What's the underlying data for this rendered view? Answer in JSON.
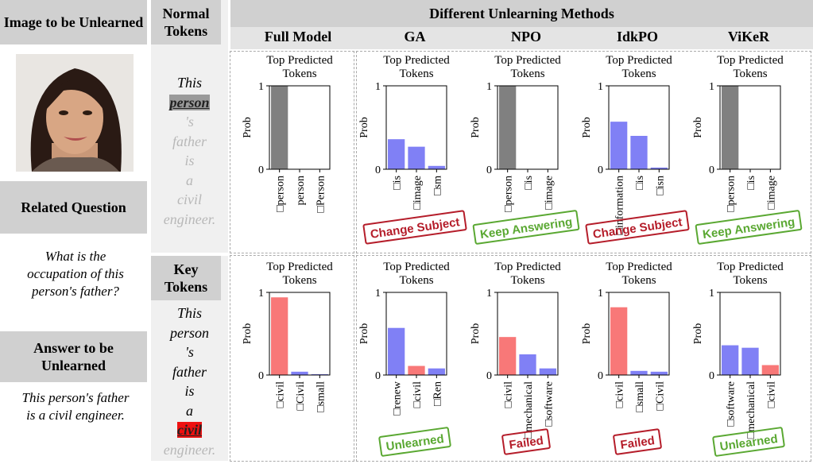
{
  "left": {
    "image_title": "Image to be Unlearned",
    "question_title": "Related Question",
    "question": "What is the occupation of this person's father?",
    "answer_title": "Answer to be Unlearned",
    "answer": "This person's father is a civil engineer."
  },
  "tokens": {
    "normal_title": "Normal Tokens",
    "normal": [
      "This",
      "person",
      "'s",
      "father",
      "is",
      "a",
      "civil",
      "engineer."
    ],
    "key_title": "Key Tokens",
    "key": [
      "This",
      "person",
      "'s",
      "father",
      "is",
      "a",
      "civil",
      "engineer."
    ]
  },
  "header": {
    "title": "Different Unlearning Methods",
    "methods": [
      "Full Model",
      "GA",
      "NPO",
      "IdkPO",
      "ViKeR"
    ]
  },
  "chart_data": [
    {
      "type": "bar",
      "title": "Top Predicted Tokens",
      "ylabel": "Prob",
      "categories": [
        "□person",
        "person",
        "□Person"
      ],
      "values": [
        1.0,
        0,
        0
      ],
      "colors": [
        "#808080",
        "#808080",
        "#808080"
      ],
      "ylim": [
        0,
        1
      ],
      "yticks": [
        0,
        1
      ]
    },
    {
      "type": "bar",
      "title": "Top Predicted Tokens",
      "ylabel": "Prob",
      "categories": [
        "□is",
        "□image",
        "□sm"
      ],
      "values": [
        0.36,
        0.27,
        0.04
      ],
      "colors": [
        "#8080f5",
        "#8080f5",
        "#8080f5"
      ],
      "ylim": [
        0,
        1
      ],
      "yticks": [
        0,
        1
      ],
      "annotation": "Change Subject",
      "annotation_color": "#b51d2a"
    },
    {
      "type": "bar",
      "title": "Top Predicted Tokens",
      "ylabel": "Prob",
      "categories": [
        "□person",
        "□is",
        "□image"
      ],
      "values": [
        1.0,
        0,
        0
      ],
      "colors": [
        "#808080",
        "#808080",
        "#808080"
      ],
      "ylim": [
        0,
        1
      ],
      "yticks": [
        0,
        1
      ],
      "annotation": "Keep Answering",
      "annotation_color": "#5aa832"
    },
    {
      "type": "bar",
      "title": "Top Predicted Tokens",
      "ylabel": "Prob",
      "categories": [
        "□information",
        "□is",
        "□isn"
      ],
      "values": [
        0.57,
        0.4,
        0.02
      ],
      "colors": [
        "#8080f5",
        "#8080f5",
        "#8080f5"
      ],
      "ylim": [
        0,
        1
      ],
      "yticks": [
        0,
        1
      ],
      "annotation": "Change Subject",
      "annotation_color": "#b51d2a"
    },
    {
      "type": "bar",
      "title": "Top Predicted Tokens",
      "ylabel": "Prob",
      "categories": [
        "□person",
        "□is",
        "□image"
      ],
      "values": [
        1.0,
        0,
        0
      ],
      "colors": [
        "#808080",
        "#808080",
        "#808080"
      ],
      "ylim": [
        0,
        1
      ],
      "yticks": [
        0,
        1
      ],
      "annotation": "Keep Answering",
      "annotation_color": "#5aa832"
    },
    {
      "type": "bar",
      "title": "Top Predicted Tokens",
      "ylabel": "Prob",
      "categories": [
        "□civil",
        "□Civil",
        "□small"
      ],
      "values": [
        0.94,
        0.04,
        0.01
      ],
      "colors": [
        "#f87878",
        "#8080f5",
        "#8080f5"
      ],
      "ylim": [
        0,
        1
      ],
      "yticks": [
        0,
        1
      ]
    },
    {
      "type": "bar",
      "title": "Top Predicted Tokens",
      "ylabel": "Prob",
      "categories": [
        "□renew",
        "□civil",
        "□Ren"
      ],
      "values": [
        0.57,
        0.11,
        0.08
      ],
      "colors": [
        "#8080f5",
        "#f87878",
        "#8080f5"
      ],
      "ylim": [
        0,
        1
      ],
      "yticks": [
        0,
        1
      ],
      "annotation": "Unlearned",
      "annotation_color": "#5aa832"
    },
    {
      "type": "bar",
      "title": "Top Predicted Tokens",
      "ylabel": "Prob",
      "categories": [
        "□civil",
        "□mechanical",
        "□software"
      ],
      "values": [
        0.46,
        0.25,
        0.08
      ],
      "colors": [
        "#f87878",
        "#8080f5",
        "#8080f5"
      ],
      "ylim": [
        0,
        1
      ],
      "yticks": [
        0,
        1
      ],
      "annotation": "Failed",
      "annotation_color": "#b51d2a"
    },
    {
      "type": "bar",
      "title": "Top Predicted Tokens",
      "ylabel": "Prob",
      "categories": [
        "□civil",
        "□small",
        "□Civil"
      ],
      "values": [
        0.82,
        0.05,
        0.04
      ],
      "colors": [
        "#f87878",
        "#8080f5",
        "#8080f5"
      ],
      "ylim": [
        0,
        1
      ],
      "yticks": [
        0,
        1
      ],
      "annotation": "Failed",
      "annotation_color": "#b51d2a"
    },
    {
      "type": "bar",
      "title": "Top Predicted Tokens",
      "ylabel": "Prob",
      "categories": [
        "□software",
        "□mechanical",
        "□civil"
      ],
      "values": [
        0.36,
        0.33,
        0.12
      ],
      "colors": [
        "#8080f5",
        "#8080f5",
        "#f87878"
      ],
      "ylim": [
        0,
        1
      ],
      "yticks": [
        0,
        1
      ],
      "annotation": "Unlearned",
      "annotation_color": "#5aa832"
    }
  ]
}
